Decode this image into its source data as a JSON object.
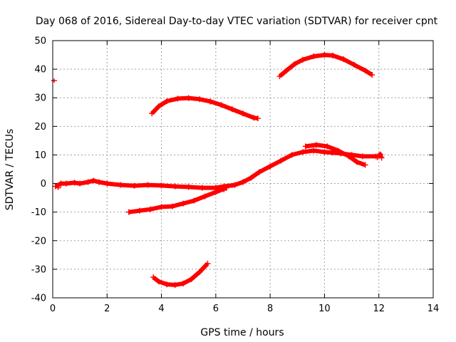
{
  "chart_data": {
    "type": "scatter",
    "title": "Day 068 of 2016, Sidereal Day-to-day VTEC variation (SDTVAR) for receiver cpnt",
    "xlabel": "GPS time / hours",
    "ylabel": "SDTVAR / TECUs",
    "xlim": [
      0,
      14
    ],
    "ylim": [
      -40,
      50
    ],
    "xticks": [
      0,
      2,
      4,
      6,
      8,
      10,
      12,
      14
    ],
    "yticks": [
      -40,
      -30,
      -20,
      -10,
      0,
      10,
      20,
      30,
      40,
      50
    ],
    "grid": true,
    "color": "#ff0000",
    "series": [
      {
        "name": "main-track",
        "points": [
          [
            0.1,
            -1
          ],
          [
            0.3,
            0
          ],
          [
            0.5,
            0
          ],
          [
            0.8,
            0.3
          ],
          [
            1.0,
            0
          ],
          [
            1.3,
            0.5
          ],
          [
            1.5,
            1
          ],
          [
            1.7,
            0.5
          ],
          [
            2.0,
            0
          ],
          [
            2.5,
            -0.5
          ],
          [
            3.0,
            -0.8
          ],
          [
            3.5,
            -0.5
          ],
          [
            4.0,
            -0.7
          ],
          [
            4.5,
            -1
          ],
          [
            5.0,
            -1.2
          ],
          [
            5.5,
            -1.5
          ],
          [
            6.0,
            -1.5
          ],
          [
            6.3,
            -1
          ],
          [
            6.7,
            -0.5
          ],
          [
            7.0,
            0.5
          ],
          [
            7.3,
            2
          ],
          [
            7.6,
            4
          ],
          [
            8.0,
            6
          ],
          [
            8.4,
            8
          ],
          [
            8.8,
            10
          ],
          [
            9.2,
            11
          ],
          [
            9.6,
            11.5
          ],
          [
            10.0,
            11
          ],
          [
            10.3,
            10.8
          ],
          [
            10.6,
            10.5
          ],
          [
            11.0,
            10
          ],
          [
            11.4,
            9.5
          ],
          [
            11.9,
            9.5
          ]
        ]
      },
      {
        "name": "secondary-track",
        "points": [
          [
            9.3,
            13
          ],
          [
            9.7,
            13.5
          ],
          [
            10.1,
            13
          ],
          [
            10.5,
            11.5
          ],
          [
            10.9,
            9.5
          ],
          [
            11.2,
            7.5
          ],
          [
            11.5,
            6.5
          ]
        ]
      },
      {
        "name": "rising-track",
        "points": [
          [
            2.8,
            -10
          ],
          [
            3.2,
            -9.5
          ],
          [
            3.6,
            -9
          ],
          [
            4.0,
            -8.2
          ],
          [
            4.4,
            -8
          ],
          [
            4.8,
            -7
          ],
          [
            5.2,
            -6
          ],
          [
            5.6,
            -4.5
          ],
          [
            6.0,
            -3
          ],
          [
            6.4,
            -1.5
          ]
        ]
      },
      {
        "name": "arc-30",
        "points": [
          [
            3.65,
            24.5
          ],
          [
            3.9,
            27
          ],
          [
            4.2,
            28.8
          ],
          [
            4.6,
            29.7
          ],
          [
            5.0,
            29.9
          ],
          [
            5.4,
            29.5
          ],
          [
            5.8,
            28.7
          ],
          [
            6.2,
            27.5
          ],
          [
            6.6,
            26
          ],
          [
            7.0,
            24.5
          ],
          [
            7.4,
            23
          ],
          [
            7.55,
            22.8
          ]
        ]
      },
      {
        "name": "arc-45",
        "points": [
          [
            8.35,
            37.5
          ],
          [
            8.6,
            39.5
          ],
          [
            8.9,
            41.8
          ],
          [
            9.2,
            43.3
          ],
          [
            9.6,
            44.5
          ],
          [
            10.0,
            45
          ],
          [
            10.3,
            44.8
          ],
          [
            10.7,
            43.5
          ],
          [
            11.1,
            41.5
          ],
          [
            11.5,
            39.5
          ],
          [
            11.75,
            38
          ]
        ]
      },
      {
        "name": "arc-negative",
        "points": [
          [
            3.7,
            -32.8
          ],
          [
            3.9,
            -34.3
          ],
          [
            4.2,
            -35.3
          ],
          [
            4.5,
            -35.5
          ],
          [
            4.8,
            -35
          ],
          [
            5.1,
            -33.5
          ],
          [
            5.4,
            -31
          ],
          [
            5.7,
            -28
          ]
        ]
      },
      {
        "name": "fragment-12",
        "points": [
          [
            11.95,
            9.2
          ],
          [
            12.05,
            10.2
          ],
          [
            12.1,
            9
          ]
        ]
      }
    ],
    "markers": [
      [
        0.05,
        36
      ],
      [
        0.2,
        -1.5
      ],
      [
        0.3,
        -0.5
      ],
      [
        6.3,
        -2.3
      ],
      [
        6.6,
        -0.8
      ]
    ]
  }
}
